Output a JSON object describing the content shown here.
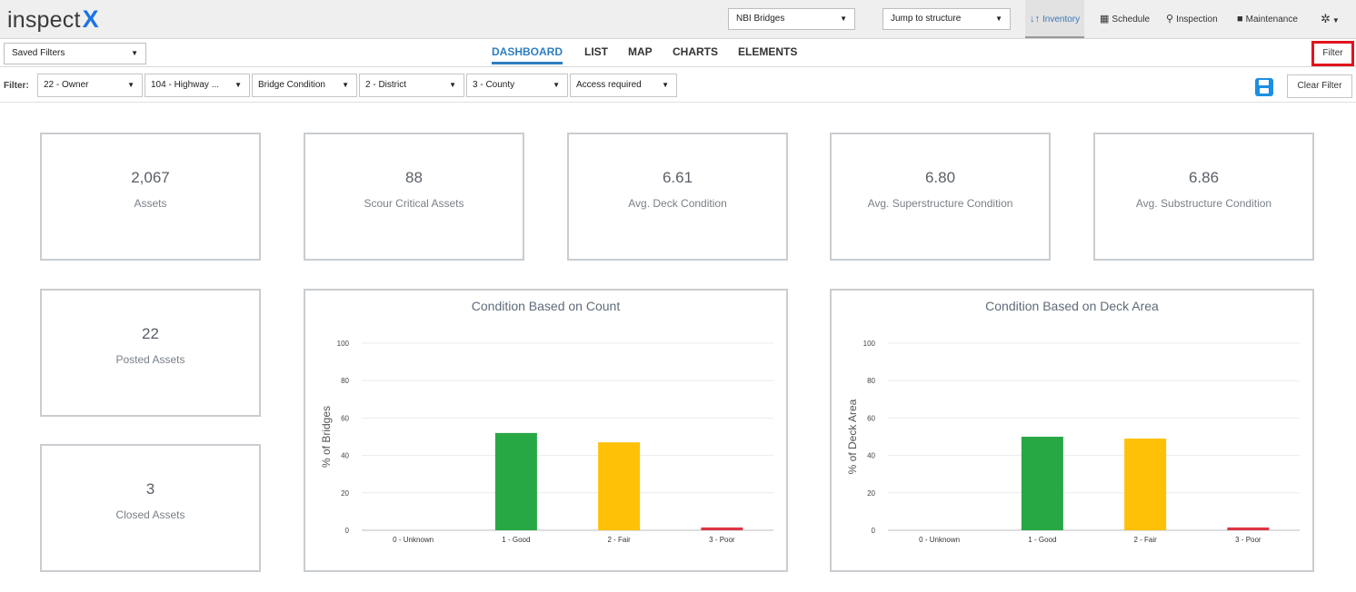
{
  "app": {
    "logo_text": "inspect",
    "logo_x": "X"
  },
  "topbar": {
    "dataset_select": "NBI Bridges",
    "jump_select": "Jump to structure",
    "nav": [
      {
        "label": "Inventory",
        "icon": "sort-icon",
        "glyph": "↓↑",
        "active": true
      },
      {
        "label": "Schedule",
        "icon": "calendar-icon",
        "glyph": "▦",
        "active": false
      },
      {
        "label": "Inspection",
        "icon": "search-icon",
        "glyph": "⚲",
        "active": false
      },
      {
        "label": "Maintenance",
        "icon": "briefcase-icon",
        "glyph": "■",
        "active": false
      }
    ],
    "settings_icon": "gear-icon"
  },
  "subbar": {
    "saved_filters": "Saved Filters",
    "tabs": [
      {
        "label": "DASHBOARD",
        "active": true
      },
      {
        "label": "LIST",
        "active": false
      },
      {
        "label": "MAP",
        "active": false
      },
      {
        "label": "CHARTS",
        "active": false
      },
      {
        "label": "ELEMENTS",
        "active": false
      }
    ],
    "filter_button": "Filter"
  },
  "filterbar": {
    "label": "Filter:",
    "filters": [
      "22 - Owner",
      "104 - Highway ...",
      "Bridge Condition",
      "2 - District",
      "3 - County",
      "Access required"
    ],
    "clear_button": "Clear Filter",
    "save_icon": "save-icon"
  },
  "cards": [
    {
      "value": "2,067",
      "label": "Assets"
    },
    {
      "value": "88",
      "label": "Scour Critical Assets"
    },
    {
      "value": "6.61",
      "label": "Avg. Deck Condition"
    },
    {
      "value": "6.80",
      "label": "Avg. Superstructure Condition"
    },
    {
      "value": "6.86",
      "label": "Avg. Substructure Condition"
    },
    {
      "value": "22",
      "label": "Posted Assets"
    },
    {
      "value": "3",
      "label": "Closed Assets"
    }
  ],
  "chart_data": [
    {
      "type": "bar",
      "title": "Condition Based on Count",
      "xlabel": "",
      "ylabel": "% of Bridges",
      "ylim": [
        0,
        100
      ],
      "yticks": [
        0,
        20,
        40,
        60,
        80,
        100
      ],
      "categories": [
        "0 - Unknown",
        "1 - Good",
        "2 - Fair",
        "3 - Poor"
      ],
      "values": [
        0,
        52,
        47,
        1.5
      ],
      "colors": [
        "#999999",
        "#28a745",
        "#ffc107",
        "#dc3545"
      ],
      "grid": true
    },
    {
      "type": "bar",
      "title": "Condition Based on Deck Area",
      "xlabel": "",
      "ylabel": "% of Deck Area",
      "ylim": [
        0,
        100
      ],
      "yticks": [
        0,
        20,
        40,
        60,
        80,
        100
      ],
      "categories": [
        "0 - Unknown",
        "1 - Good",
        "2 - Fair",
        "3 - Poor"
      ],
      "values": [
        0,
        50,
        49,
        1.5
      ],
      "colors": [
        "#999999",
        "#28a745",
        "#ffc107",
        "#dc3545"
      ],
      "grid": true
    }
  ]
}
